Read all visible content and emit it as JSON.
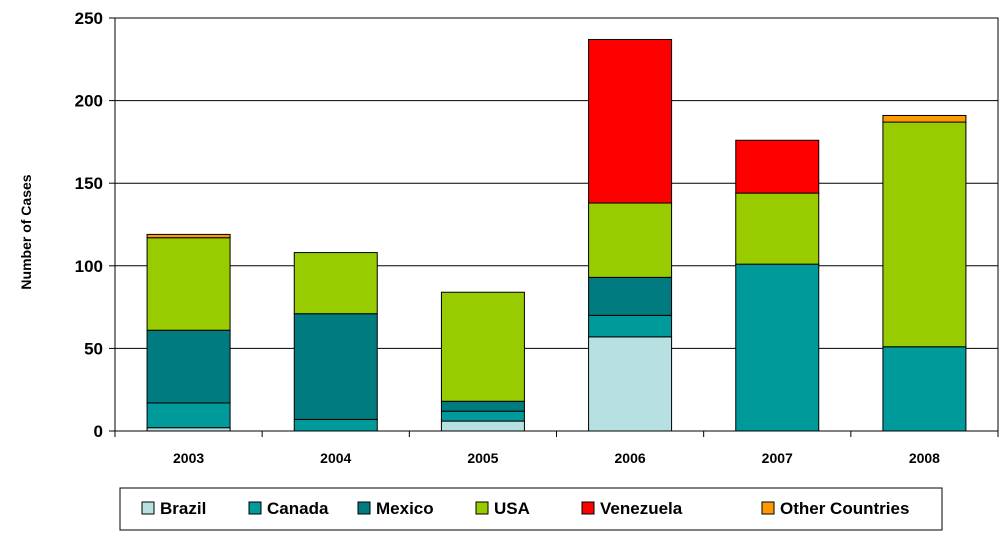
{
  "chart_data": {
    "type": "bar",
    "stacked": true,
    "title": "",
    "xlabel": "",
    "ylabel": "Number of Cases",
    "ylim": [
      0,
      250
    ],
    "yticks": [
      "0",
      "50",
      "100",
      "150",
      "200",
      "250"
    ],
    "grid": true,
    "legend_position": "bottom",
    "categories": [
      "2003",
      "2004",
      "2005",
      "2006",
      "2007",
      "2008"
    ],
    "series": [
      {
        "name": "Brazil",
        "color": "#b7e0e3",
        "values": [
          2,
          0,
          6,
          57,
          0,
          0
        ]
      },
      {
        "name": "Canada",
        "color": "#009a9b",
        "values": [
          15,
          7,
          6,
          13,
          101,
          51
        ]
      },
      {
        "name": "Mexico",
        "color": "#007b80",
        "values": [
          44,
          64,
          6,
          23,
          0,
          0
        ]
      },
      {
        "name": "USA",
        "color": "#99cc00",
        "values": [
          56,
          37,
          66,
          45,
          43,
          136
        ]
      },
      {
        "name": "Venezuela",
        "color": "#ff0000",
        "values": [
          0,
          0,
          0,
          99,
          32,
          0
        ]
      },
      {
        "name": "Other Countries",
        "color": "#ff9900",
        "values": [
          2,
          0,
          0,
          0,
          0,
          4
        ]
      }
    ]
  }
}
